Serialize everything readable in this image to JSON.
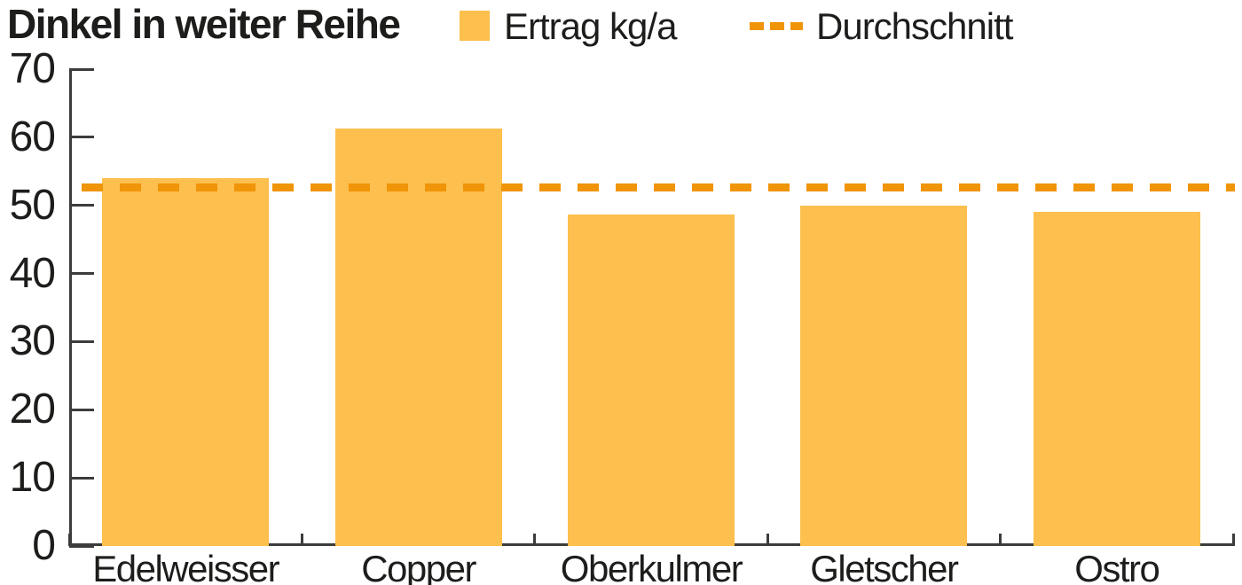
{
  "title": "Dinkel in weiter Reihe",
  "chart_data": {
    "type": "bar",
    "title": "Dinkel in weiter Reihe",
    "categories": [
      "Edelweisser",
      "Copper",
      "Oberkulmer",
      "Gletscher",
      "Ostro"
    ],
    "series": [
      {
        "name": "Ertrag kg/a",
        "values": [
          54,
          61.3,
          48.6,
          50,
          49
        ]
      }
    ],
    "average_line": {
      "name": "Durchschnitt",
      "value": 52.6,
      "style": "dashed"
    },
    "xlabel": "",
    "ylabel": "",
    "ylim": [
      0,
      70
    ],
    "yticks": [
      0,
      10,
      20,
      30,
      40,
      50,
      60,
      70
    ],
    "grid": false,
    "legend_position": "top",
    "colors": {
      "bar": "#FDBF4D",
      "average_line": "#F09408",
      "axis": "#3C3C3B",
      "text": "#1D1D1B"
    }
  }
}
